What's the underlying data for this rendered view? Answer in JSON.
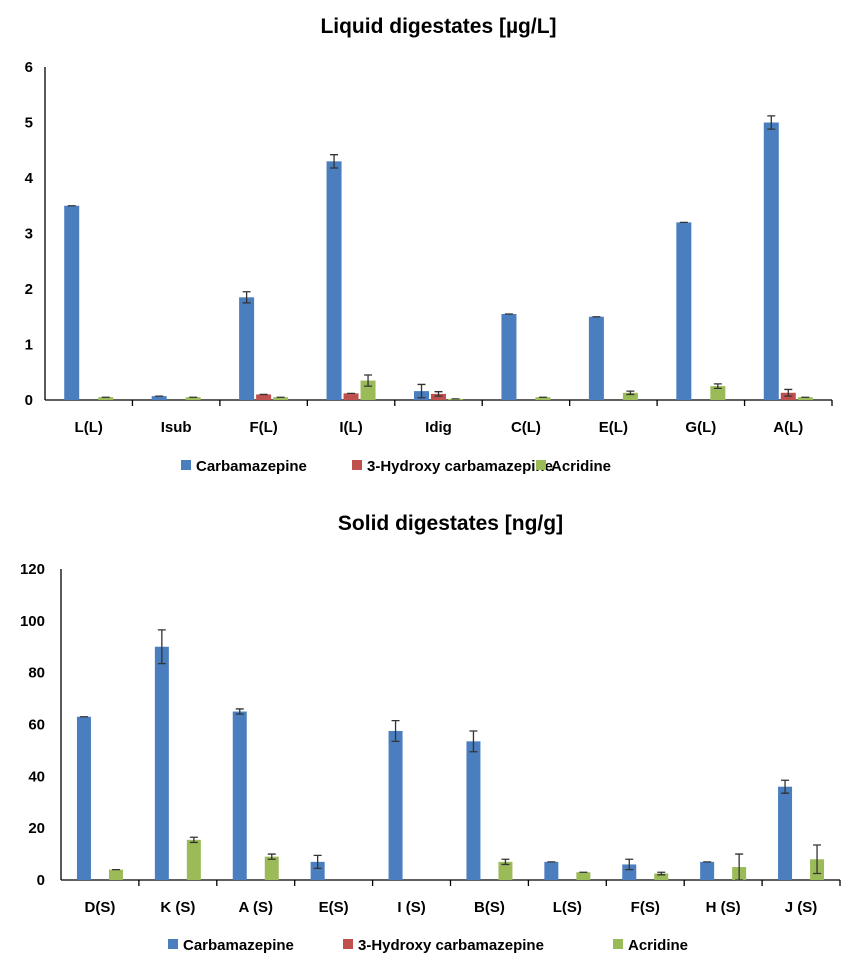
{
  "colors": {
    "Carbamazepine": "#4a7ebf",
    "3-Hydroxy carbamazepine": "#c0504d",
    "Acridine": "#9bbb59"
  },
  "chart_data": [
    {
      "type": "bar",
      "title": "Liquid digestates [µg/L]",
      "ylim": [
        0,
        6
      ],
      "yticks": [
        0,
        1,
        2,
        3,
        4,
        5,
        6
      ],
      "categories": [
        "L(L)",
        "Isub",
        "F(L)",
        "I(L)",
        "Idig",
        "C(L)",
        "E(L)",
        "G(L)",
        "A(L)"
      ],
      "series": [
        {
          "name": "Carbamazepine",
          "values": [
            3.5,
            0.07,
            1.85,
            4.3,
            0.16,
            1.55,
            1.5,
            3.2,
            5.0
          ],
          "errors": [
            0,
            0,
            0.1,
            0.12,
            0.12,
            0,
            0,
            0,
            0.12
          ]
        },
        {
          "name": "3-Hydroxy carbamazepine",
          "values": [
            0,
            0,
            0.1,
            0.12,
            0.11,
            0,
            0,
            0,
            0.13
          ],
          "errors": [
            0,
            0,
            0,
            0,
            0.04,
            0,
            0,
            0,
            0.06
          ]
        },
        {
          "name": "Acridine",
          "values": [
            0.05,
            0.05,
            0.05,
            0.35,
            0.02,
            0.05,
            0.13,
            0.25,
            0.05
          ],
          "errors": [
            0,
            0,
            0,
            0.1,
            0,
            0,
            0.03,
            0.04,
            0
          ]
        }
      ],
      "legend": "bottom"
    },
    {
      "type": "bar",
      "title": "Solid digestates [ng/g]",
      "ylim": [
        0,
        120
      ],
      "yticks": [
        0,
        20,
        40,
        60,
        80,
        100,
        120
      ],
      "categories": [
        "D(S)",
        "K (S)",
        "A (S)",
        "E(S)",
        "I (S)",
        "B(S)",
        "L(S)",
        "F(S)",
        "H (S)",
        "J (S)"
      ],
      "series": [
        {
          "name": "Carbamazepine",
          "values": [
            63,
            90,
            65,
            7,
            57.5,
            53.5,
            7,
            6,
            7,
            36
          ],
          "errors": [
            0,
            6.5,
            1,
            2.5,
            4,
            4,
            0,
            2,
            0,
            2.5
          ]
        },
        {
          "name": "3-Hydroxy carbamazepine",
          "values": [
            0,
            0,
            0,
            0,
            0,
            0,
            0,
            0,
            0,
            0
          ],
          "errors": [
            0,
            0,
            0,
            0,
            0,
            0,
            0,
            0,
            0,
            0
          ]
        },
        {
          "name": "Acridine",
          "values": [
            4,
            15.5,
            9,
            0,
            0,
            7,
            3,
            2.5,
            5,
            8
          ],
          "errors": [
            0,
            1,
            1,
            0,
            0,
            1,
            0,
            0.5,
            5,
            5.5
          ]
        }
      ],
      "legend": "bottom"
    }
  ]
}
